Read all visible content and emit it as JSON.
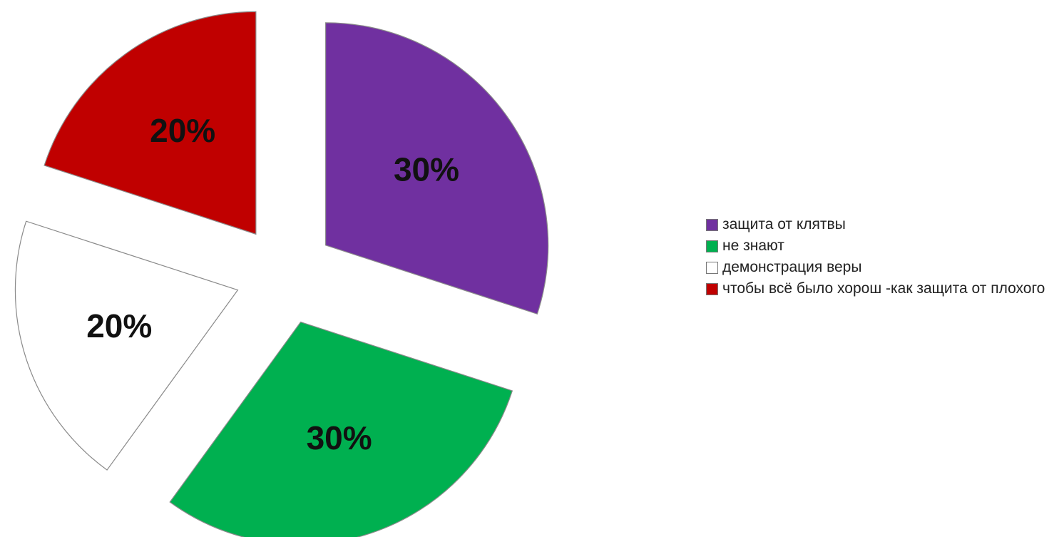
{
  "chart_data": {
    "type": "pie",
    "title": "",
    "slices": [
      {
        "label": "защита от клятвы",
        "value": 30,
        "value_label": "30%",
        "color": "#7030a0"
      },
      {
        "label": "не знают",
        "value": 30,
        "value_label": "30%",
        "color": "#00b050"
      },
      {
        "label": "демонстрация веры",
        "value": 20,
        "value_label": "20%",
        "color": "#ffffff"
      },
      {
        "label": "чтобы всё было хорош -как защита от плохого",
        "value": 20,
        "value_label": "20%",
        "color": "#c00000"
      }
    ],
    "exploded": true,
    "legend_position": "right"
  }
}
